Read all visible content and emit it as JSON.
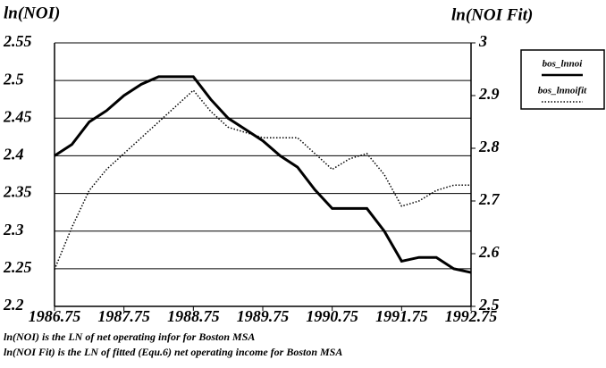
{
  "chart_data": {
    "type": "line",
    "y_label": "ln(NOI)",
    "y2_label": "ln(NOI Fit)",
    "x": [
      1986.75,
      1987,
      1987.25,
      1987.5,
      1987.75,
      1988,
      1988.25,
      1988.5,
      1988.75,
      1989,
      1989.25,
      1989.5,
      1989.75,
      1990,
      1990.25,
      1990.5,
      1990.75,
      1991,
      1991.25,
      1991.5,
      1991.75,
      1992,
      1992.25,
      1992.5,
      1992.75
    ],
    "series": [
      {
        "name": "bos_lnnoi",
        "color": "#000000",
        "style": "solid",
        "values": [
          2.4,
          2.415,
          2.445,
          2.46,
          2.48,
          2.495,
          2.505,
          2.505,
          2.505,
          2.475,
          2.45,
          2.435,
          2.42,
          2.4,
          2.385,
          2.355,
          2.33,
          2.33,
          2.33,
          2.3,
          2.26,
          2.265,
          2.265,
          2.25,
          2.245
        ]
      },
      {
        "name": "bos_lnnoifit",
        "color": "#000000",
        "style": "dotted",
        "axis": "y2",
        "values": [
          2.57,
          2.65,
          2.72,
          2.76,
          2.79,
          2.82,
          2.85,
          2.88,
          2.91,
          2.87,
          2.84,
          2.83,
          2.82,
          2.82,
          2.82,
          2.79,
          2.76,
          2.78,
          2.79,
          2.75,
          2.69,
          2.7,
          2.72,
          2.73,
          2.73
        ]
      }
    ],
    "xlim": [
      1986.75,
      1992.75
    ],
    "xticks": [
      1986.75,
      1987.75,
      1988.75,
      1989.75,
      1990.75,
      1991.75,
      1992.75
    ],
    "ylim": [
      2.2,
      2.55
    ],
    "yticks": [
      2.2,
      2.25,
      2.3,
      2.35,
      2.4,
      2.45,
      2.5,
      2.55
    ],
    "y2lim": [
      2.5,
      3
    ],
    "y2ticks": [
      2.5,
      2.6,
      2.7,
      2.8,
      2.9,
      3
    ],
    "grid": true,
    "legend": "right",
    "notes": [
      "ln(NOI) is the LN of net operating infor for Boston MSA",
      "ln(NOI Fit) is the LN of fitted (Equ.6) net operating income for Boston MSA"
    ]
  }
}
